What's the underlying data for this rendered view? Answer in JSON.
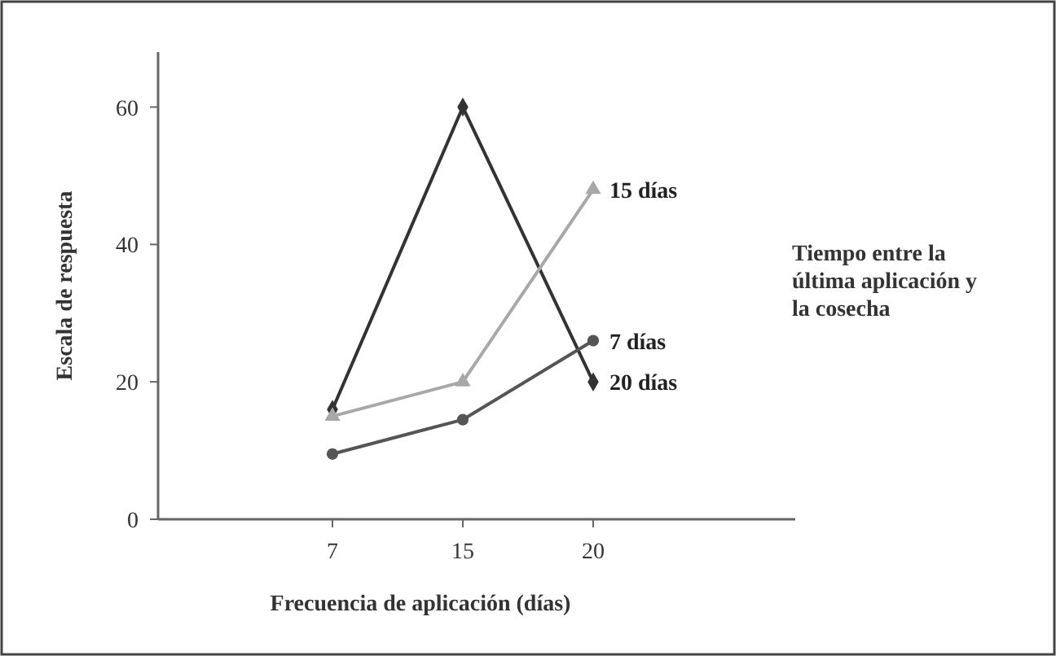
{
  "chart_data": {
    "type": "line",
    "xlabel": "Frecuencia de aplicación (días)",
    "ylabel": "Escala de respuesta",
    "legend_title": "Tiempo entre la última aplicación y la cosecha",
    "categories": [
      "7",
      "15",
      "20"
    ],
    "series": [
      {
        "name": "20 días",
        "color": "#333333",
        "marker": "diamond",
        "values": [
          16,
          60,
          20
        ]
      },
      {
        "name": "15 días",
        "color": "#a8a8a8",
        "marker": "triangle",
        "values": [
          15,
          20,
          48
        ]
      },
      {
        "name": "7 días",
        "color": "#555555",
        "marker": "circle",
        "values": [
          9.5,
          14.5,
          26
        ]
      }
    ],
    "ylim": [
      0,
      68
    ],
    "yticks": [
      0,
      20,
      40,
      60
    ],
    "grid": false,
    "legend": "right",
    "line_style": "solid"
  }
}
